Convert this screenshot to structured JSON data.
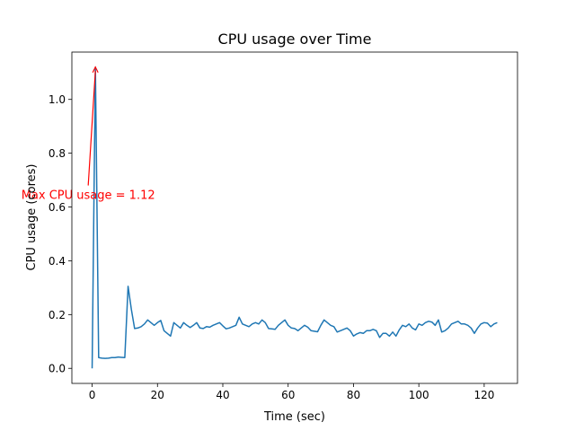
{
  "chart_data": {
    "type": "line",
    "title": "CPU usage over Time",
    "xlabel": "Time (sec)",
    "ylabel": "CPU usage (cores)",
    "xlim": [
      -6.2,
      130.2
    ],
    "ylim": [
      -0.056,
      1.176
    ],
    "xticks": [
      0,
      20,
      40,
      60,
      80,
      100,
      120
    ],
    "yticks": [
      0.0,
      0.2,
      0.4,
      0.6,
      0.8,
      1.0
    ],
    "xtick_labels": [
      "0",
      "20",
      "40",
      "60",
      "80",
      "100",
      "120"
    ],
    "ytick_labels": [
      "0.0",
      "0.2",
      "0.4",
      "0.6",
      "0.8",
      "1.0"
    ],
    "grid": false,
    "series": [
      {
        "color": "#1f77b4",
        "x": [
          0,
          1,
          2,
          3,
          4,
          5,
          6,
          7,
          8,
          9,
          10,
          11,
          12,
          13,
          14,
          15,
          16,
          17,
          18,
          19,
          20,
          21,
          22,
          23,
          24,
          25,
          26,
          27,
          28,
          29,
          30,
          31,
          32,
          33,
          34,
          35,
          36,
          37,
          38,
          39,
          40,
          41,
          42,
          43,
          44,
          45,
          46,
          47,
          48,
          49,
          50,
          51,
          52,
          53,
          54,
          55,
          56,
          57,
          58,
          59,
          60,
          61,
          62,
          63,
          64,
          65,
          66,
          67,
          68,
          69,
          70,
          71,
          72,
          73,
          74,
          75,
          76,
          77,
          78,
          79,
          80,
          81,
          82,
          83,
          84,
          85,
          86,
          87,
          88,
          89,
          90,
          91,
          92,
          93,
          94,
          95,
          96,
          97,
          98,
          99,
          100,
          101,
          102,
          103,
          104,
          105,
          106,
          107,
          108,
          109,
          110,
          111,
          112,
          113,
          114,
          115,
          116,
          117,
          118,
          119,
          120,
          121,
          122,
          123,
          124
        ],
        "values": [
          0.0,
          1.12,
          0.04,
          0.038,
          0.037,
          0.038,
          0.04,
          0.04,
          0.042,
          0.041,
          0.04,
          0.305,
          0.22,
          0.148,
          0.15,
          0.155,
          0.165,
          0.18,
          0.17,
          0.16,
          0.17,
          0.178,
          0.14,
          0.13,
          0.12,
          0.17,
          0.16,
          0.15,
          0.17,
          0.16,
          0.152,
          0.16,
          0.17,
          0.15,
          0.148,
          0.155,
          0.153,
          0.16,
          0.165,
          0.17,
          0.158,
          0.147,
          0.15,
          0.155,
          0.16,
          0.19,
          0.165,
          0.16,
          0.155,
          0.165,
          0.17,
          0.165,
          0.18,
          0.17,
          0.148,
          0.147,
          0.145,
          0.16,
          0.17,
          0.18,
          0.16,
          0.15,
          0.148,
          0.14,
          0.15,
          0.16,
          0.153,
          0.14,
          0.138,
          0.136,
          0.16,
          0.18,
          0.17,
          0.16,
          0.155,
          0.135,
          0.14,
          0.145,
          0.15,
          0.14,
          0.12,
          0.128,
          0.133,
          0.13,
          0.14,
          0.14,
          0.145,
          0.14,
          0.115,
          0.13,
          0.13,
          0.12,
          0.135,
          0.12,
          0.143,
          0.16,
          0.155,
          0.165,
          0.15,
          0.143,
          0.165,
          0.16,
          0.17,
          0.175,
          0.172,
          0.16,
          0.18,
          0.135,
          0.14,
          0.15,
          0.165,
          0.17,
          0.175,
          0.165,
          0.165,
          0.16,
          0.15,
          0.13,
          0.15,
          0.165,
          0.17,
          0.168,
          0.155,
          0.165,
          0.17
        ]
      }
    ],
    "annotation": {
      "text": "Max CPU usage = 1.12",
      "color": "#ff0000",
      "point": [
        1,
        1.12
      ],
      "text_anchor_data": [
        -1.2,
        0.68
      ]
    }
  }
}
